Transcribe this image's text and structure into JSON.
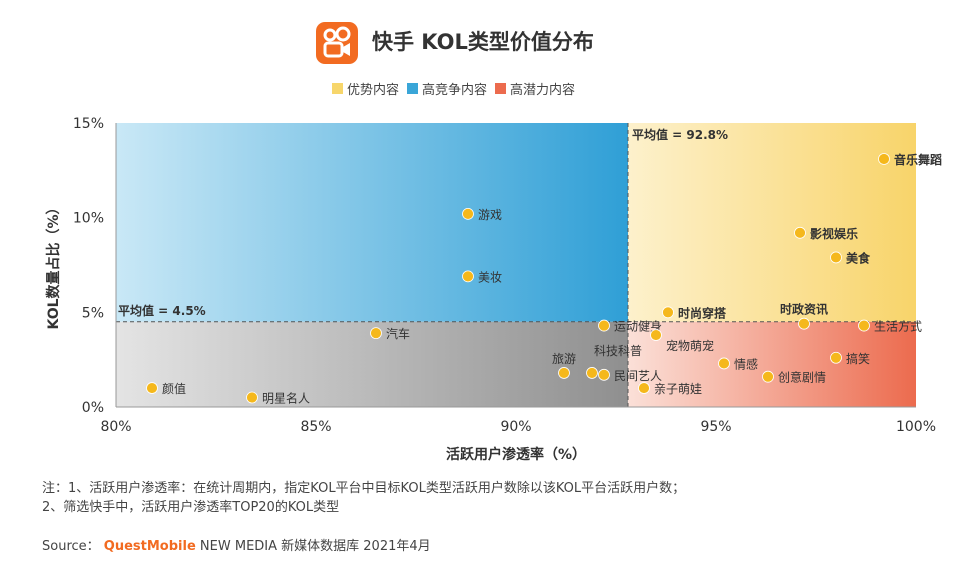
{
  "header": {
    "title": "快手 KOL类型价值分布",
    "logo_icon": "kuaishou-logo-icon"
  },
  "legend": {
    "items": [
      {
        "label": "优势内容",
        "color": "#f7d66b"
      },
      {
        "label": "高竞争内容",
        "color": "#3aa6d8"
      },
      {
        "label": "高潜力内容",
        "color": "#ec6b4e"
      }
    ]
  },
  "chart_data": {
    "type": "scatter",
    "title": "快手 KOL类型价值分布",
    "xlabel": "活跃用户渗透率（%）",
    "ylabel": "KOL数量占比（%）",
    "xlim": [
      80,
      100
    ],
    "ylim": [
      0,
      15
    ],
    "x_ticks": [
      "80%",
      "85%",
      "90%",
      "95%",
      "100%"
    ],
    "y_ticks": [
      "0%",
      "5%",
      "10%",
      "15%"
    ],
    "x_tick_values": [
      80,
      85,
      90,
      95,
      100
    ],
    "y_tick_values": [
      0,
      5,
      10,
      15
    ],
    "grid": false,
    "legend_position": "top",
    "point_color": "#f5b81c",
    "quadrant_colors": {
      "top_left": "#3aa6d8",
      "top_right": "#f7d66b",
      "bottom_right": "#ec6b4e",
      "bottom_left": "#9a9a9a"
    },
    "reference_lines": [
      {
        "axis": "x",
        "value": 92.8,
        "label": "平均值 = 92.8%"
      },
      {
        "axis": "y",
        "value": 4.5,
        "label": "平均值 = 4.5%"
      }
    ],
    "points": [
      {
        "label": "音乐舞蹈",
        "x": 99.2,
        "y": 13.1,
        "bold": true,
        "anchor": "right"
      },
      {
        "label": "影视娱乐",
        "x": 97.1,
        "y": 9.2,
        "bold": true,
        "anchor": "right"
      },
      {
        "label": "美食",
        "x": 98.0,
        "y": 7.9,
        "bold": true,
        "anchor": "right"
      },
      {
        "label": "时尚穿搭",
        "x": 93.8,
        "y": 5.0,
        "bold": true,
        "anchor": "right"
      },
      {
        "label": "时政资讯",
        "x": 97.2,
        "y": 4.4,
        "bold": true,
        "anchor": "above"
      },
      {
        "label": "生活方式",
        "x": 98.7,
        "y": 4.3,
        "bold": false,
        "anchor": "right"
      },
      {
        "label": "游戏",
        "x": 88.8,
        "y": 10.2,
        "bold": false,
        "anchor": "right"
      },
      {
        "label": "美妆",
        "x": 88.8,
        "y": 6.9,
        "bold": false,
        "anchor": "right"
      },
      {
        "label": "汽车",
        "x": 86.5,
        "y": 3.9,
        "bold": false,
        "anchor": "right"
      },
      {
        "label": "运动健身",
        "x": 92.2,
        "y": 4.3,
        "bold": false,
        "anchor": "right"
      },
      {
        "label": "宠物萌宠",
        "x": 93.5,
        "y": 3.8,
        "bold": false,
        "anchor": "below-right"
      },
      {
        "label": "旅游",
        "x": 91.2,
        "y": 1.8,
        "bold": false,
        "anchor": "above"
      },
      {
        "label": "科技科普",
        "x": 91.9,
        "y": 1.8,
        "bold": false,
        "anchor": "above-right"
      },
      {
        "label": "民间艺人",
        "x": 92.2,
        "y": 1.7,
        "bold": false,
        "anchor": "right"
      },
      {
        "label": "亲子萌娃",
        "x": 93.2,
        "y": 1.0,
        "bold": false,
        "anchor": "right"
      },
      {
        "label": "情感",
        "x": 95.2,
        "y": 2.3,
        "bold": false,
        "anchor": "right"
      },
      {
        "label": "创意剧情",
        "x": 96.3,
        "y": 1.6,
        "bold": false,
        "anchor": "right"
      },
      {
        "label": "搞笑",
        "x": 98.0,
        "y": 2.6,
        "bold": false,
        "anchor": "right"
      },
      {
        "label": "颜值",
        "x": 80.9,
        "y": 1.0,
        "bold": false,
        "anchor": "right"
      },
      {
        "label": "明星名人",
        "x": 83.4,
        "y": 0.5,
        "bold": false,
        "anchor": "right"
      }
    ]
  },
  "notes": {
    "line1": "注：1、活跃用户渗透率：在统计周期内，指定KOL平台中目标KOL类型活跃用户数除以该KOL平台活跃用户数；",
    "line2": "2、筛选快手中，活跃用户渗透率TOP20的KOL类型"
  },
  "source": {
    "prefix": "Source：",
    "brand": "QuestMobile",
    "suffix": " NEW MEDIA 新媒体数据库 2021年4月"
  }
}
